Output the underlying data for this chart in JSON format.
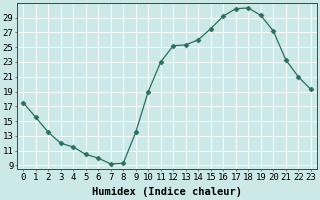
{
  "x": [
    0,
    1,
    2,
    3,
    4,
    5,
    6,
    7,
    8,
    9,
    10,
    11,
    12,
    13,
    14,
    15,
    16,
    17,
    18,
    19,
    20,
    21,
    22,
    23
  ],
  "y": [
    17.5,
    15.5,
    13.5,
    12.0,
    11.5,
    10.5,
    10.0,
    9.2,
    9.3,
    13.5,
    19.0,
    23.0,
    25.2,
    25.3,
    26.0,
    27.5,
    29.2,
    30.2,
    30.3,
    29.3,
    27.2,
    23.3,
    21.0,
    19.3
  ],
  "line_color": "#2d6e5e",
  "marker": "D",
  "marker_size": 2.5,
  "bg_color": "#cce8e8",
  "grid_color": "#ffffff",
  "xlabel": "Humidex (Indice chaleur)",
  "xlim": [
    -0.5,
    23.5
  ],
  "ylim": [
    8.5,
    31
  ],
  "yticks": [
    9,
    11,
    13,
    15,
    17,
    19,
    21,
    23,
    25,
    27,
    29
  ],
  "xticks": [
    0,
    1,
    2,
    3,
    4,
    5,
    6,
    7,
    8,
    9,
    10,
    11,
    12,
    13,
    14,
    15,
    16,
    17,
    18,
    19,
    20,
    21,
    22,
    23
  ],
  "xlabel_fontsize": 7.5,
  "tick_fontsize": 6.5
}
